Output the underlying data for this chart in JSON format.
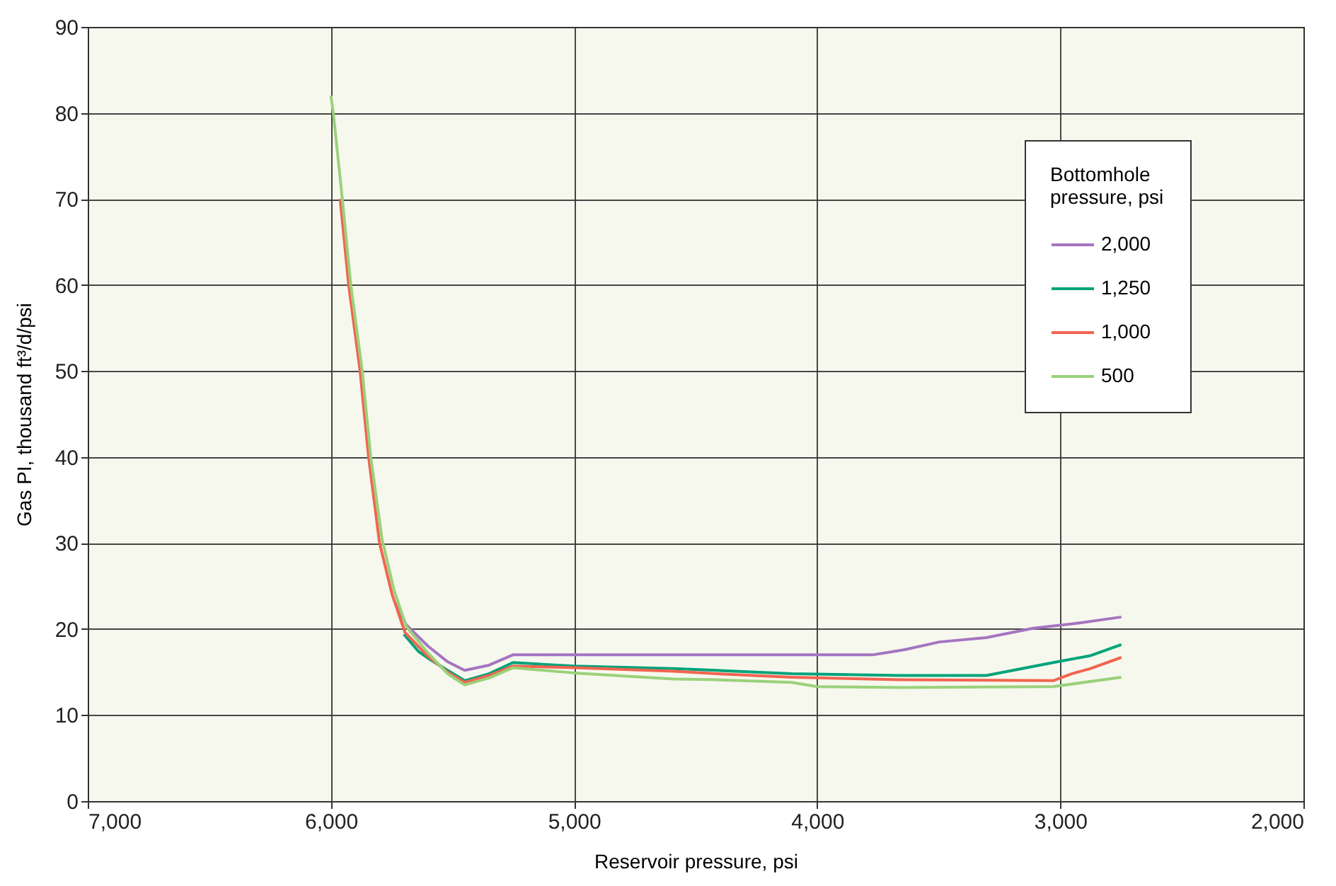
{
  "chart_data": {
    "type": "line",
    "xlabel": "Reservoir pressure, psi",
    "ylabel": "Gas PI, thousand ft³/d/psi",
    "legend_title": "Bottomhole pressure, psi",
    "legend": "top right",
    "grid": true,
    "line_style": "solid",
    "marker": "none",
    "xlim": [
      7000,
      2000
    ],
    "xticks": [
      {
        "value": 7000,
        "label": "7,000"
      },
      {
        "value": 6000,
        "label": "6,000"
      },
      {
        "value": 5000,
        "label": "5,000"
      },
      {
        "value": 4000,
        "label": "4,000"
      },
      {
        "value": 3000,
        "label": "3,000"
      },
      {
        "value": 2000,
        "label": "2,000"
      }
    ],
    "ylim": [
      0,
      90
    ],
    "yticks": [
      0,
      10,
      20,
      30,
      40,
      50,
      60,
      70,
      80,
      90
    ],
    "series": [
      {
        "name": "2,000",
        "color": "#a575c0",
        "x": [
          5735,
          5690,
          5600,
          5520,
          5450,
          5350,
          5251,
          5000,
          4500,
          4000,
          3772,
          3640,
          3497,
          3304,
          3111,
          2950,
          2749
        ],
        "values": [
          23,
          20.5,
          18,
          16.2,
          15.2,
          15.8,
          17,
          17,
          17,
          17,
          17,
          17.6,
          18.5,
          19,
          20.1,
          20.6,
          21.4
        ]
      },
      {
        "name": "1,250",
        "color": "#00a37a",
        "x": [
          5700,
          5640,
          5600,
          5520,
          5450,
          5350,
          5251,
          5000,
          4591,
          4415,
          4105,
          3655,
          3304,
          3029,
          2877,
          2749
        ],
        "values": [
          19.4,
          17.4,
          16.6,
          15.2,
          14,
          14.8,
          16.1,
          15.7,
          15.4,
          15.2,
          14.8,
          14.6,
          14.6,
          16.1,
          16.9,
          18.2
        ]
      },
      {
        "name": "1,000",
        "color": "#f26450",
        "x": [
          5962,
          5927,
          5880,
          5845,
          5800,
          5748,
          5695,
          5600,
          5520,
          5450,
          5350,
          5251,
          5000,
          4591,
          4415,
          4105,
          3655,
          3029,
          2953,
          2877,
          2749
        ],
        "values": [
          70,
          60,
          50,
          40,
          30,
          24,
          19.6,
          16.8,
          15,
          13.8,
          14.6,
          15.7,
          15.5,
          15.1,
          14.8,
          14.4,
          14.1,
          14,
          14.8,
          15.4,
          16.7
        ]
      },
      {
        "name": "500",
        "color": "#9ad17a",
        "x": [
          6000,
          5990,
          5953,
          5918,
          5871,
          5836,
          5790,
          5740,
          5690,
          5600,
          5520,
          5450,
          5350,
          5251,
          5000,
          4591,
          4415,
          4105,
          4000,
          3655,
          3029,
          2749
        ],
        "values": [
          82,
          80,
          70,
          60,
          50,
          40,
          30.5,
          24.5,
          20.3,
          17.2,
          14.8,
          13.5,
          14.3,
          15.5,
          14.9,
          14.2,
          14.1,
          13.8,
          13.3,
          13.2,
          13.3,
          14.4
        ]
      }
    ]
  }
}
